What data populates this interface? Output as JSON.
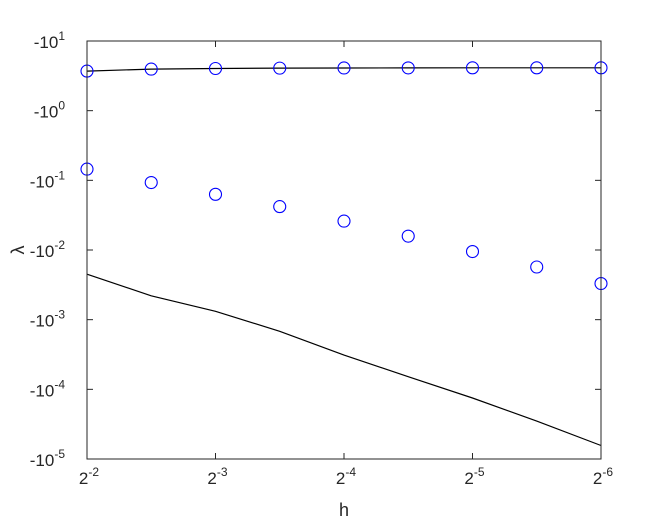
{
  "chart_data": {
    "type": "line",
    "title": "",
    "xlabel": "h",
    "ylabel": "λ",
    "x_axis": {
      "scale": "log2",
      "reversed": true,
      "exponents": [
        -2,
        -6
      ],
      "ticks": [
        {
          "exp": -2,
          "base": "2",
          "sup": "-2"
        },
        {
          "exp": -3,
          "base": "2",
          "sup": "-3"
        },
        {
          "exp": -4,
          "base": "2",
          "sup": "-4"
        },
        {
          "exp": -5,
          "base": "2",
          "sup": "-5"
        },
        {
          "exp": -6,
          "base": "2",
          "sup": "-6"
        }
      ]
    },
    "y_axis": {
      "scale": "log10_of_negative",
      "magnitude_exponents": [
        -5,
        1
      ],
      "ticks": [
        {
          "exp": 1,
          "base": "-10",
          "sup": "1"
        },
        {
          "exp": 0,
          "base": "-10",
          "sup": "0"
        },
        {
          "exp": -1,
          "base": "-10",
          "sup": "-1"
        },
        {
          "exp": -2,
          "base": "-10",
          "sup": "-2"
        },
        {
          "exp": -3,
          "base": "-10",
          "sup": "-3"
        },
        {
          "exp": -4,
          "base": "-10",
          "sup": "-4"
        },
        {
          "exp": -5,
          "base": "-10",
          "sup": "-5"
        }
      ]
    },
    "grid": false,
    "legend": "none",
    "series": [
      {
        "style": "line",
        "color": "#000000",
        "x": [
          0.25,
          0.1768,
          0.125,
          0.0884,
          0.0625,
          0.0442,
          0.03125,
          0.0221,
          0.015625
        ],
        "y": [
          -3.7,
          -3.95,
          -4.03,
          -4.08,
          -4.1,
          -4.11,
          -4.12,
          -4.12,
          -4.12
        ]
      },
      {
        "style": "markers",
        "marker": "circle",
        "color": "#0000ff",
        "x": [
          0.25,
          0.1768,
          0.125,
          0.0884,
          0.0625,
          0.0442,
          0.03125,
          0.0221,
          0.015625
        ],
        "y": [
          -3.7,
          -3.95,
          -4.03,
          -4.08,
          -4.1,
          -4.11,
          -4.12,
          -4.12,
          -4.12
        ]
      },
      {
        "style": "markers",
        "marker": "circle",
        "color": "#0000ff",
        "x": [
          0.25,
          0.1768,
          0.125,
          0.0884,
          0.0625,
          0.0442,
          0.03125,
          0.0221,
          0.015625
        ],
        "y": [
          -0.145,
          -0.093,
          -0.063,
          -0.042,
          -0.026,
          -0.0158,
          -0.0095,
          -0.0057,
          -0.0033
        ]
      },
      {
        "style": "line",
        "color": "#000000",
        "x": [
          0.25,
          0.1768,
          0.125,
          0.0884,
          0.0625,
          0.0442,
          0.03125,
          0.0221,
          0.015625
        ],
        "y": [
          -0.0045,
          -0.0022,
          -0.00132,
          -0.00068,
          -0.00031,
          -0.000152,
          -7.5e-05,
          -3.5e-05,
          -1.56e-05
        ]
      }
    ]
  }
}
